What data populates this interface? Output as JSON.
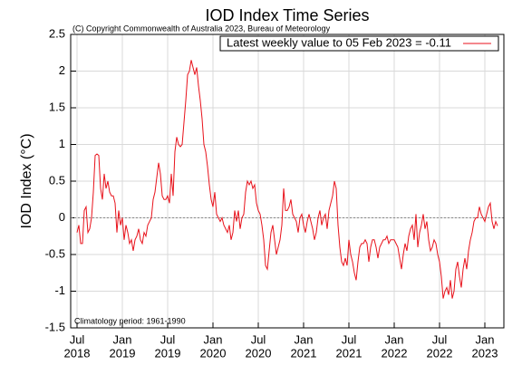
{
  "chart_data": {
    "type": "line",
    "title": "IOD Index Time Series",
    "subtitle": "(C) Copyright Commonwealth of Australia 2023, Bureau of Meteorology",
    "y_label": "IOD Index (°C)",
    "annotation": "Climatology period: 1961-1990",
    "legend": "top-right",
    "grid": true,
    "zero_line": true,
    "xlim": [
      2018.43,
      2023.21
    ],
    "ylim": [
      -1.5,
      2.5
    ],
    "yticks": [
      -1.5,
      -1,
      -0.5,
      0,
      0.5,
      1,
      1.5,
      2,
      2.5
    ],
    "xticks": [
      {
        "value": 2018.5,
        "label": [
          "Jul",
          "2018"
        ]
      },
      {
        "value": 2019,
        "label": [
          "Jan",
          "2019"
        ]
      },
      {
        "value": 2019.5,
        "label": [
          "Jul",
          "2019"
        ]
      },
      {
        "value": 2020,
        "label": [
          "Jan",
          "2020"
        ]
      },
      {
        "value": 2020.5,
        "label": [
          "Jul",
          "2020"
        ]
      },
      {
        "value": 2021,
        "label": [
          "Jan",
          "2021"
        ]
      },
      {
        "value": 2021.5,
        "label": [
          "Jul",
          "2021"
        ]
      },
      {
        "value": 2022,
        "label": [
          "Jan",
          "2022"
        ]
      },
      {
        "value": 2022.5,
        "label": [
          "Jul",
          "2022"
        ]
      },
      {
        "value": 2023,
        "label": [
          "Jan",
          "2023"
        ]
      }
    ],
    "x": [
      2018.5,
      2018.52,
      2018.54,
      2018.56,
      2018.58,
      2018.6,
      2018.62,
      2018.64,
      2018.66,
      2018.68,
      2018.7,
      2018.72,
      2018.74,
      2018.76,
      2018.78,
      2018.8,
      2018.82,
      2018.84,
      2018.86,
      2018.88,
      2018.9,
      2018.92,
      2018.94,
      2018.96,
      2018.98,
      2019,
      2019.02,
      2019.04,
      2019.06,
      2019.08,
      2019.1,
      2019.12,
      2019.14,
      2019.16,
      2019.18,
      2019.2,
      2019.22,
      2019.24,
      2019.26,
      2019.28,
      2019.3,
      2019.32,
      2019.34,
      2019.36,
      2019.38,
      2019.4,
      2019.42,
      2019.44,
      2019.46,
      2019.48,
      2019.5,
      2019.52,
      2019.54,
      2019.56,
      2019.58,
      2019.6,
      2019.62,
      2019.64,
      2019.66,
      2019.68,
      2019.7,
      2019.72,
      2019.74,
      2019.76,
      2019.78,
      2019.8,
      2019.82,
      2019.84,
      2019.86,
      2019.88,
      2019.9,
      2019.92,
      2019.94,
      2019.96,
      2019.98,
      2020,
      2020.02,
      2020.04,
      2020.06,
      2020.08,
      2020.1,
      2020.12,
      2020.14,
      2020.16,
      2020.18,
      2020.2,
      2020.22,
      2020.24,
      2020.26,
      2020.28,
      2020.3,
      2020.32,
      2020.34,
      2020.36,
      2020.38,
      2020.4,
      2020.42,
      2020.44,
      2020.46,
      2020.48,
      2020.5,
      2020.52,
      2020.54,
      2020.56,
      2020.58,
      2020.6,
      2020.62,
      2020.64,
      2020.66,
      2020.68,
      2020.7,
      2020.72,
      2020.74,
      2020.76,
      2020.78,
      2020.8,
      2020.82,
      2020.84,
      2020.86,
      2020.88,
      2020.9,
      2020.92,
      2020.94,
      2020.96,
      2020.98,
      2021,
      2021.02,
      2021.04,
      2021.06,
      2021.08,
      2021.1,
      2021.12,
      2021.14,
      2021.16,
      2021.18,
      2021.2,
      2021.22,
      2021.24,
      2021.26,
      2021.28,
      2021.3,
      2021.32,
      2021.34,
      2021.36,
      2021.38,
      2021.4,
      2021.42,
      2021.44,
      2021.46,
      2021.48,
      2021.5,
      2021.52,
      2021.54,
      2021.56,
      2021.58,
      2021.6,
      2021.62,
      2021.64,
      2021.66,
      2021.68,
      2021.7,
      2021.72,
      2021.74,
      2021.76,
      2021.78,
      2021.8,
      2021.82,
      2021.84,
      2021.86,
      2021.88,
      2021.9,
      2021.92,
      2021.94,
      2021.96,
      2021.98,
      2022,
      2022.02,
      2022.04,
      2022.06,
      2022.08,
      2022.1,
      2022.12,
      2022.14,
      2022.16,
      2022.18,
      2022.2,
      2022.22,
      2022.24,
      2022.26,
      2022.28,
      2022.3,
      2022.32,
      2022.34,
      2022.36,
      2022.38,
      2022.4,
      2022.42,
      2022.44,
      2022.46,
      2022.48,
      2022.5,
      2022.52,
      2022.54,
      2022.56,
      2022.58,
      2022.6,
      2022.62,
      2022.64,
      2022.66,
      2022.68,
      2022.7,
      2022.72,
      2022.74,
      2022.76,
      2022.78,
      2022.8,
      2022.82,
      2022.84,
      2022.86,
      2022.88,
      2022.9,
      2022.92,
      2022.94,
      2022.96,
      2022.98,
      2023,
      2023.02,
      2023.04,
      2023.06,
      2023.08,
      2023.1,
      2023.12,
      2023.14
    ],
    "series": [
      {
        "name": "Latest weekly value to 05 Feb 2023 = -0.11",
        "color": "#e8121b",
        "values": [
          -0.2,
          -0.1,
          -0.35,
          -0.35,
          0.1,
          0.15,
          -0.2,
          -0.15,
          0,
          0.35,
          0.85,
          0.87,
          0.85,
          0.4,
          0.25,
          0.6,
          0.4,
          0.5,
          0.35,
          0.3,
          0.3,
          0.2,
          -0.2,
          0.1,
          -0.1,
          0,
          -0.3,
          -0.1,
          -0.2,
          -0.35,
          -0.3,
          -0.45,
          -0.3,
          -0.25,
          -0.15,
          -0.3,
          -0.35,
          -0.2,
          -0.25,
          -0.1,
          -0.05,
          0,
          0.25,
          0.35,
          0.55,
          0.75,
          0.6,
          0.3,
          0.25,
          0.25,
          0.3,
          0.2,
          0.6,
          0.3,
          0.9,
          1.1,
          1,
          0.97,
          1,
          1.3,
          1.6,
          1.95,
          2,
          2.15,
          2.05,
          1.95,
          2.05,
          1.8,
          1.6,
          1.35,
          1,
          0.9,
          0.7,
          0.45,
          0.25,
          0.15,
          0.35,
          0.05,
          0,
          -0.05,
          0,
          -0.1,
          -0.15,
          -0.2,
          -0.1,
          -0.3,
          -0.2,
          0.1,
          -0.05,
          0.1,
          -0.15,
          0,
          0.05,
          0.35,
          0.5,
          0.45,
          0.5,
          0.4,
          0.45,
          0.2,
          0.1,
          0.05,
          -0.1,
          -0.3,
          -0.65,
          -0.7,
          -0.45,
          -0.2,
          -0.1,
          -0.3,
          -0.5,
          -0.4,
          -0.3,
          -0.1,
          0.4,
          0.1,
          0.1,
          0.15,
          0.25,
          0.05,
          0,
          -0.05,
          -0.2,
          0,
          0.05,
          -0.1,
          -0.2,
          -0.05,
          0.05,
          -0.05,
          -0.15,
          -0.3,
          -0.2,
          0,
          0.1,
          -0.1,
          0,
          0.05,
          -0.15,
          0.1,
          0.2,
          0.3,
          0.5,
          0.4,
          -0.1,
          -0.4,
          -0.6,
          -0.65,
          -0.55,
          -0.65,
          -0.3,
          -0.5,
          -0.6,
          -0.75,
          -0.85,
          -0.6,
          -0.4,
          -0.35,
          -0.35,
          -0.3,
          -0.35,
          -0.6,
          -0.4,
          -0.3,
          -0.3,
          -0.4,
          -0.55,
          -0.4,
          -0.35,
          -0.3,
          -0.3,
          -0.25,
          -0.35,
          -0.3,
          -0.3,
          -0.3,
          -0.35,
          -0.4,
          -0.55,
          -0.7,
          -0.5,
          -0.35,
          -0.45,
          -0.25,
          -0.15,
          -0.1,
          -0.3,
          0.05,
          -0.4,
          -0.2,
          -0.1,
          0.05,
          -0.15,
          -0.05,
          -0.3,
          -0.45,
          -0.4,
          -0.3,
          -0.35,
          -0.5,
          -0.6,
          -0.8,
          -1.1,
          -1,
          -0.95,
          -1.05,
          -0.85,
          -1.1,
          -1,
          -0.7,
          -0.6,
          -0.8,
          -0.95,
          -0.7,
          -0.55,
          -0.7,
          -0.45,
          -0.3,
          -0.2,
          -0.05,
          0,
          0,
          0.15,
          0.05,
          0,
          -0.05,
          0.05,
          0.15,
          0.2,
          -0.05,
          -0.15,
          -0.05,
          -0.11
        ]
      }
    ]
  }
}
